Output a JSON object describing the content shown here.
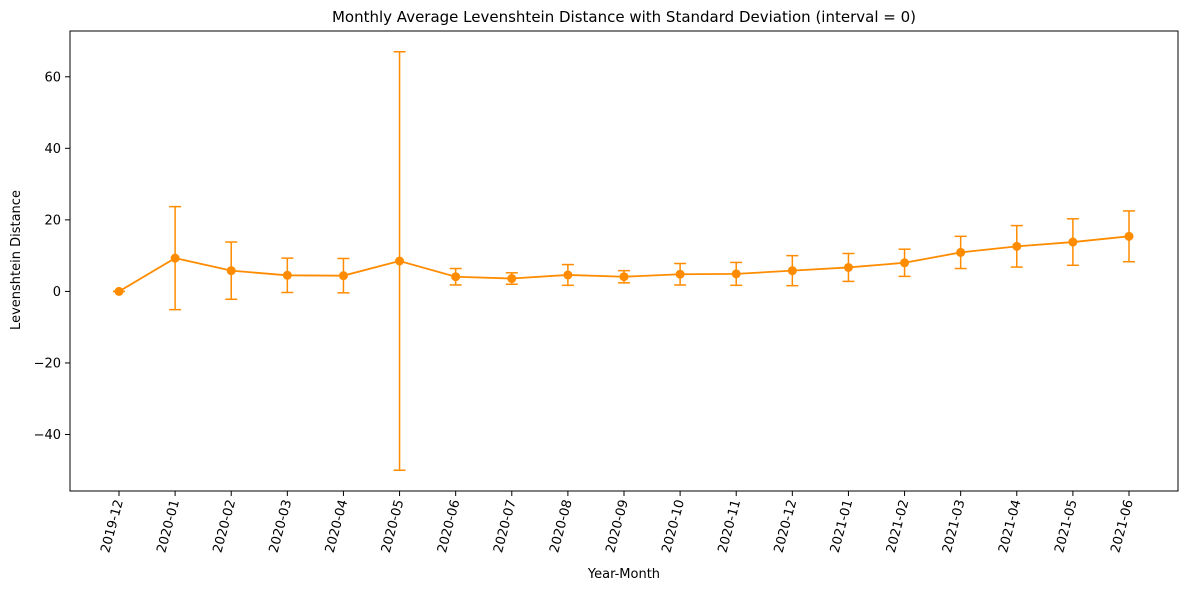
{
  "chart_data": {
    "type": "line",
    "title": "Monthly Average Levenshtein Distance with Standard Deviation (interval = 0)",
    "xlabel": "Year-Month",
    "ylabel": "Levenshtein Distance",
    "categories": [
      "2019-12",
      "2020-01",
      "2020-02",
      "2020-03",
      "2020-04",
      "2020-05",
      "2020-06",
      "2020-07",
      "2020-08",
      "2020-09",
      "2020-10",
      "2020-11",
      "2020-12",
      "2021-01",
      "2021-02",
      "2021-03",
      "2021-04",
      "2021-05",
      "2021-06"
    ],
    "series": [
      {
        "values": [
          0.0,
          9.3,
          5.8,
          4.5,
          4.4,
          8.5,
          4.1,
          3.6,
          4.6,
          4.1,
          4.8,
          4.9,
          5.8,
          6.7,
          8.0,
          10.9,
          12.6,
          13.8,
          15.4
        ],
        "std": [
          0.0,
          14.4,
          8.0,
          4.8,
          4.8,
          58.5,
          2.3,
          1.6,
          2.9,
          1.7,
          3.0,
          3.2,
          4.2,
          3.9,
          3.8,
          4.5,
          5.8,
          6.5,
          7.1
        ],
        "color": "#ff8c00"
      }
    ],
    "yticks": [
      -40,
      -20,
      0,
      20,
      40,
      60
    ],
    "ylim": [
      -55.8,
      72.8
    ],
    "grid": false,
    "x_tick_rotation": 75
  }
}
